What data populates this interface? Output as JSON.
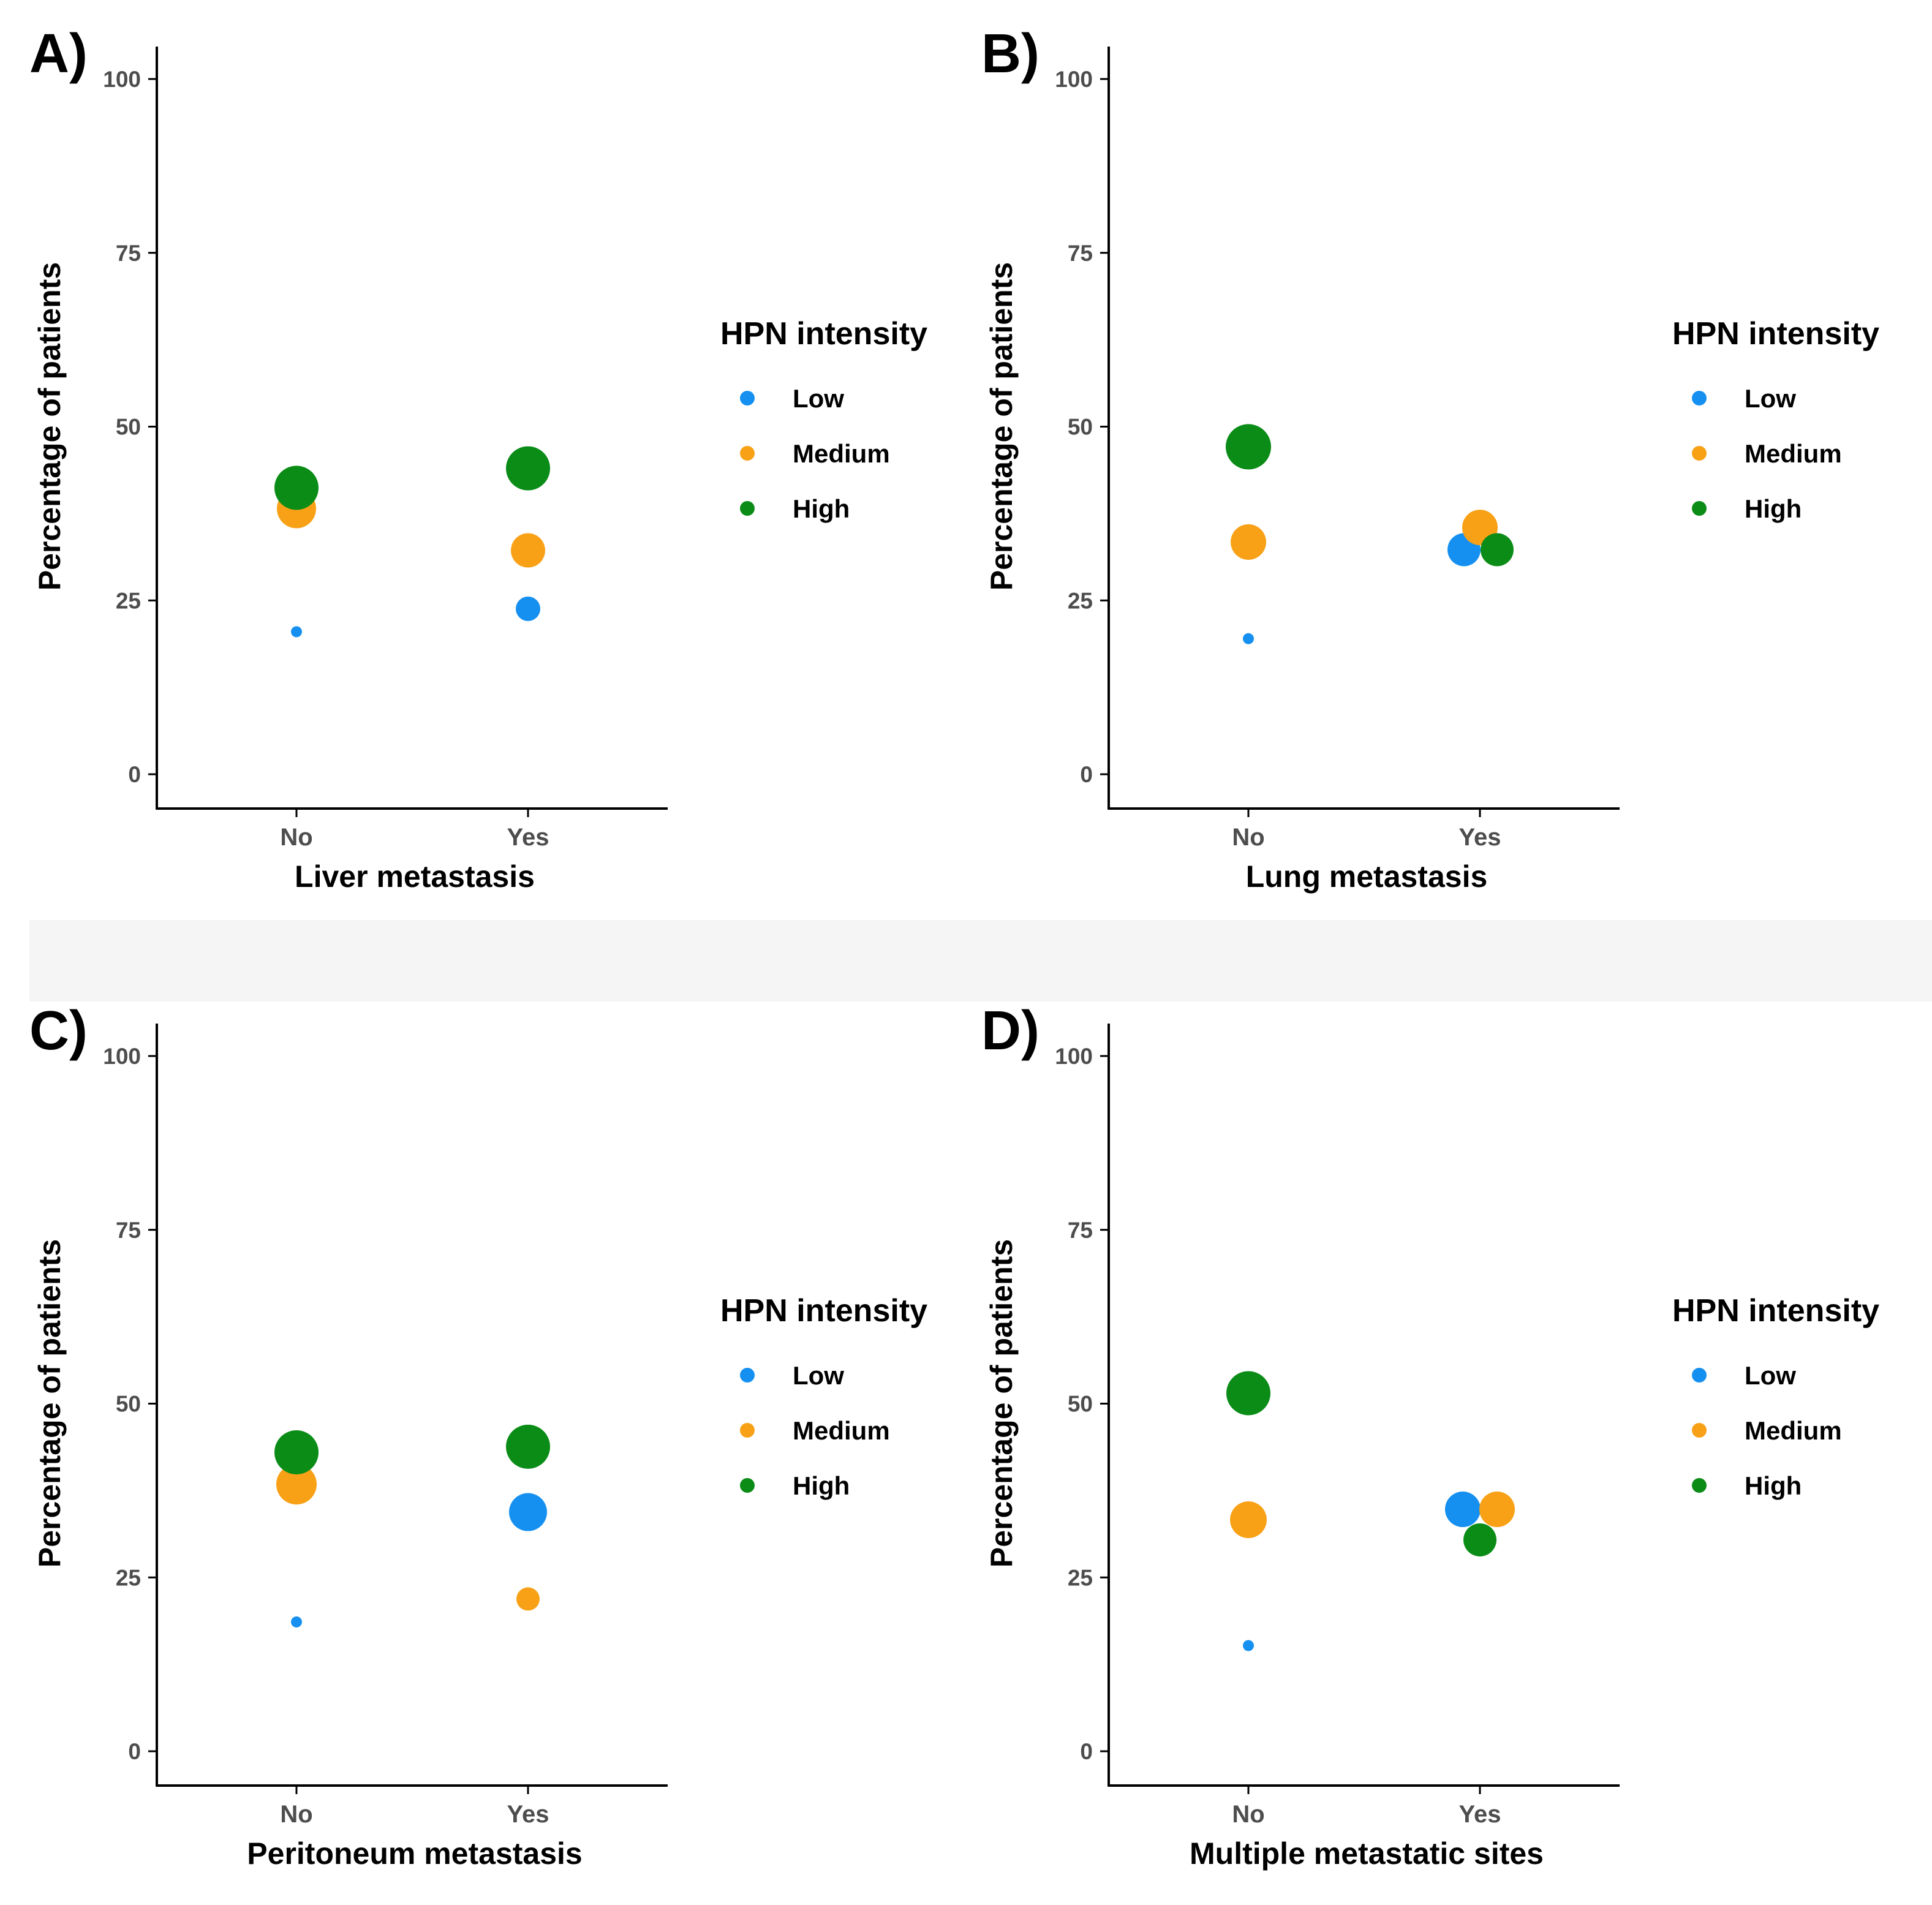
{
  "legend_title": "HPN intensity",
  "y_axis_label": "Percentage of patients",
  "colors": {
    "Low": "#1590f0",
    "Medium": "#f8a116",
    "High": "#0a8c17",
    "axis": "#000000",
    "tick_label": "#4d4d4d"
  },
  "chart_data": [
    {
      "type": "scatter",
      "panel_label": "A)",
      "xlabel": "Liver metastasis",
      "ylabel": "Percentage of patients",
      "categories": [
        "No",
        "Yes"
      ],
      "ylim": [
        0,
        100
      ],
      "yticks": [
        0,
        25,
        50,
        75,
        100
      ],
      "legend": {
        "title": "HPN intensity",
        "entries": [
          "Low",
          "Medium",
          "High"
        ],
        "position": "right"
      },
      "series": [
        {
          "name": "Low",
          "values": [
            20.5,
            23.8
          ]
        },
        {
          "name": "Medium",
          "values": [
            38.2,
            32.2
          ]
        },
        {
          "name": "High",
          "values": [
            41.2,
            44.0
          ]
        }
      ]
    },
    {
      "type": "scatter",
      "panel_label": "B)",
      "xlabel": "Lung metastasis",
      "ylabel": "Percentage of patients",
      "categories": [
        "No",
        "Yes"
      ],
      "ylim": [
        0,
        100
      ],
      "yticks": [
        0,
        25,
        50,
        75,
        100
      ],
      "legend": {
        "title": "HPN intensity",
        "entries": [
          "Low",
          "Medium",
          "High"
        ],
        "position": "right"
      },
      "series": [
        {
          "name": "Low",
          "values": [
            19.5,
            32.3
          ]
        },
        {
          "name": "Medium",
          "values": [
            33.4,
            35.5
          ]
        },
        {
          "name": "High",
          "values": [
            47.1,
            32.3
          ]
        }
      ]
    },
    {
      "type": "scatter",
      "panel_label": "C)",
      "xlabel": "Peritoneum metastasis",
      "ylabel": "Percentage of patients",
      "categories": [
        "No",
        "Yes"
      ],
      "ylim": [
        0,
        100
      ],
      "yticks": [
        0,
        25,
        50,
        75,
        100
      ],
      "legend": {
        "title": "HPN intensity",
        "entries": [
          "Low",
          "Medium",
          "High"
        ],
        "position": "right"
      },
      "series": [
        {
          "name": "Low",
          "values": [
            18.6,
            34.4
          ]
        },
        {
          "name": "Medium",
          "values": [
            38.4,
            21.9
          ]
        },
        {
          "name": "High",
          "values": [
            43.0,
            43.8
          ]
        }
      ]
    },
    {
      "type": "scatter",
      "panel_label": "D)",
      "xlabel": "Multiple metastatic sites",
      "ylabel": "Percentage of patients",
      "categories": [
        "No",
        "Yes"
      ],
      "ylim": [
        0,
        100
      ],
      "yticks": [
        0,
        25,
        50,
        75,
        100
      ],
      "legend": {
        "title": "HPN intensity",
        "entries": [
          "Low",
          "Medium",
          "High"
        ],
        "position": "right"
      },
      "series": [
        {
          "name": "Low",
          "values": [
            15.2,
            34.8
          ]
        },
        {
          "name": "Medium",
          "values": [
            33.3,
            34.8
          ]
        },
        {
          "name": "High",
          "values": [
            51.5,
            30.4
          ]
        }
      ]
    }
  ]
}
